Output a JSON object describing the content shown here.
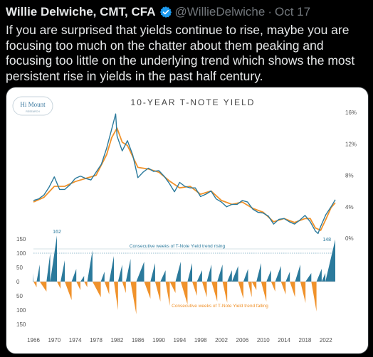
{
  "tweet": {
    "author_name": "Willie Delwiche, CMT, CFA",
    "handle": "@WillieDelwiche",
    "separator": "·",
    "date": "Oct 17",
    "text": "If you are surprised that yields continue to rise, maybe you are focusing too much on the chatter about them peaking and focusing too little on the underlying trend which shows the most persistent rise in yields in the past half century."
  },
  "logo": {
    "line1": "Hi Mount",
    "line2": "RESEARCH"
  },
  "colors": {
    "yield_line": "#2b7a9c",
    "trend_line": "#f0922b",
    "rising_fill": "#2b7a9c",
    "falling_fill": "#f0922b",
    "axis_text": "#555555",
    "annotation_text": "#2b7a9c"
  },
  "chart_data": [
    {
      "type": "line",
      "title": "10-YEAR T-NOTE YIELD",
      "y_ticks": [
        "16%",
        "12%",
        "8%",
        "4%",
        "0%"
      ],
      "ylim": [
        0,
        16
      ],
      "series": [
        {
          "x": [
            1966,
            1967,
            1968,
            1969,
            1970,
            1971,
            1972,
            1973,
            1974,
            1975,
            1976,
            1977,
            1978,
            1979,
            1980,
            1981,
            1981.75,
            1982,
            1983,
            1984,
            1985,
            1986,
            1987,
            1988,
            1989,
            1990,
            1991,
            1992,
            1993,
            1994,
            1995,
            1996,
            1997,
            1998,
            1999,
            2000,
            2001,
            2002,
            2003,
            2004,
            2005,
            2006,
            2007,
            2008,
            2009,
            2010,
            2011,
            2012,
            2013,
            2014,
            2015,
            2016,
            2017,
            2018,
            2019,
            2020,
            2020.5,
            2021,
            2022,
            2023,
            2023.8
          ],
          "values": [
            4.8,
            5.0,
            5.5,
            6.5,
            7.8,
            6.2,
            6.2,
            6.8,
            7.6,
            7.9,
            7.6,
            7.4,
            8.4,
            9.4,
            11.4,
            13.9,
            15.8,
            13.0,
            11.1,
            12.4,
            10.6,
            7.7,
            8.4,
            8.9,
            8.5,
            8.6,
            7.9,
            7.0,
            5.9,
            7.1,
            6.6,
            6.4,
            6.4,
            5.3,
            5.6,
            6.0,
            5.0,
            4.6,
            4.0,
            4.3,
            4.3,
            4.8,
            4.6,
            3.7,
            3.3,
            3.2,
            2.8,
            1.8,
            2.4,
            2.5,
            2.1,
            1.8,
            2.3,
            2.9,
            2.1,
            0.9,
            0.6,
            1.5,
            3.0,
            4.0,
            4.9
          ]
        },
        {
          "x": [
            1966,
            1968,
            1970,
            1972,
            1974,
            1976,
            1978,
            1980,
            1981,
            1982,
            1983,
            1984,
            1986,
            1988,
            1990,
            1992,
            1994,
            1996,
            1998,
            2000,
            2002,
            2004,
            2006,
            2008,
            2010,
            2012,
            2014,
            2016,
            2018,
            2019,
            2020,
            2021,
            2022,
            2023,
            2023.8
          ],
          "values": [
            4.6,
            5.2,
            6.6,
            6.6,
            7.2,
            7.6,
            8.0,
            10.6,
            12.8,
            14.0,
            12.2,
            11.8,
            9.0,
            8.8,
            8.4,
            7.3,
            6.4,
            6.6,
            5.6,
            6.0,
            4.8,
            4.3,
            4.6,
            3.8,
            3.3,
            2.1,
            2.5,
            2.0,
            2.5,
            2.5,
            1.3,
            1.0,
            2.4,
            3.9,
            4.5
          ]
        }
      ]
    },
    {
      "type": "area",
      "y_ticks": [
        "150",
        "100",
        "50",
        "0",
        "50",
        "100",
        "150"
      ],
      "ylim": [
        -150,
        150
      ],
      "x_ticks": [
        "1966",
        "1970",
        "1974",
        "1978",
        "1982",
        "1986",
        "1990",
        "1994",
        "1998",
        "2002",
        "2006",
        "2010",
        "2014",
        "2018",
        "2022"
      ],
      "reference_line": 100,
      "annotations": [
        {
          "text": "162"
        },
        {
          "text": "148"
        },
        {
          "text": "Consecutive weeks of T-Note Yield trend rising"
        },
        {
          "text": "Consecutive weeks of T-Note Yield trend falling"
        }
      ],
      "series": [
        {
          "segments": [
            [
              1966,
              30
            ],
            [
              1966.6,
              -20
            ],
            [
              1967.2,
              60
            ],
            [
              1968.5,
              -35
            ],
            [
              1969.2,
              100
            ],
            [
              1970.5,
              162
            ],
            [
              1971.2,
              -25
            ],
            [
              1972,
              75
            ],
            [
              1973.3,
              -65
            ],
            [
              1974.2,
              45
            ],
            [
              1975,
              -30
            ],
            [
              1975.7,
              20
            ],
            [
              1976.3,
              -20
            ],
            [
              1977.3,
              110
            ],
            [
              1978.9,
              -55
            ],
            [
              1979.6,
              35
            ],
            [
              1980.5,
              -45
            ],
            [
              1981.4,
              90
            ],
            [
              1982.2,
              -100
            ],
            [
              1983,
              60
            ],
            [
              1983.7,
              -40
            ],
            [
              1984.6,
              80
            ],
            [
              1985.7,
              -115
            ],
            [
              1987.2,
              70
            ],
            [
              1988.4,
              -60
            ],
            [
              1989.3,
              65
            ],
            [
              1990.3,
              -70
            ],
            [
              1991.3,
              40
            ],
            [
              1992.1,
              -85
            ],
            [
              1993.2,
              -40
            ],
            [
              1994.2,
              70
            ],
            [
              1995.5,
              -80
            ],
            [
              1996.4,
              65
            ],
            [
              1997.3,
              -50
            ],
            [
              1998.3,
              40
            ],
            [
              1999.2,
              -55
            ],
            [
              2000.1,
              60
            ],
            [
              2001.2,
              -70
            ],
            [
              2002.2,
              60
            ],
            [
              2003.1,
              -75
            ],
            [
              2004,
              40
            ],
            [
              2005.2,
              55
            ],
            [
              2006.2,
              -60
            ],
            [
              2007.1,
              45
            ],
            [
              2007.8,
              -55
            ],
            [
              2008.7,
              -30
            ],
            [
              2009.6,
              65
            ],
            [
              2010.6,
              -70
            ],
            [
              2011.5,
              40
            ],
            [
              2012.3,
              -35
            ],
            [
              2013.4,
              55
            ],
            [
              2014.3,
              -45
            ],
            [
              2015.1,
              35
            ],
            [
              2016.1,
              -55
            ],
            [
              2017.1,
              60
            ],
            [
              2018.1,
              -75
            ],
            [
              2019.2,
              30
            ],
            [
              2020.2,
              -105
            ],
            [
              2021.2,
              45
            ],
            [
              2021.9,
              30
            ],
            [
              2023.8,
              148
            ]
          ]
        }
      ]
    }
  ]
}
